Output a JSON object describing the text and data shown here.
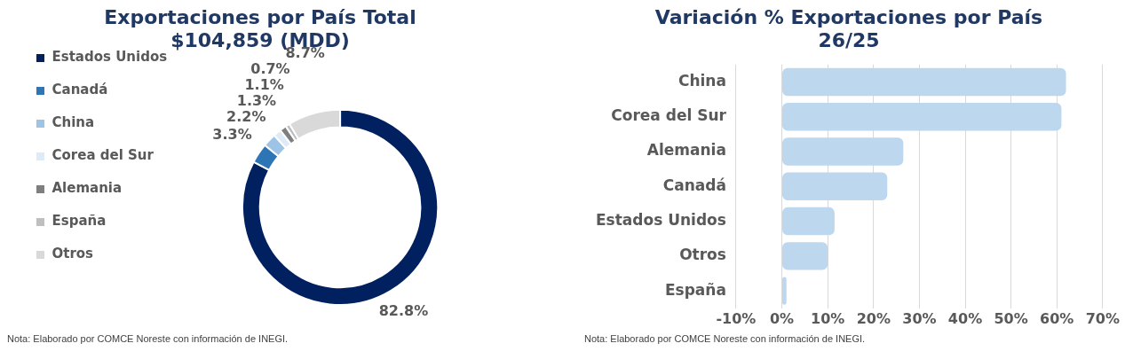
{
  "chart_data": [
    {
      "type": "donut",
      "title": "Exportaciones por País Total\n$104,859 (MDD)",
      "categories": [
        "Estados Unidos",
        "Canadá",
        "China",
        "Corea del Sur",
        "Alemania",
        "España",
        "Otros"
      ],
      "values": [
        82.8,
        3.3,
        2.2,
        1.3,
        1.1,
        0.7,
        8.7
      ],
      "value_labels": [
        "82.8%",
        "3.3%",
        "2.2%",
        "1.3%",
        "1.1%",
        "0.7%",
        "8.7%"
      ],
      "colors": [
        "#002060",
        "#2e75b6",
        "#9dc3e6",
        "#deebf7",
        "#7f7f7f",
        "#bfbfbf",
        "#d9d9d9"
      ],
      "legend": "left",
      "annotations": [
        "Nota: Elaborado por COMCE Noreste con información de INEGI."
      ]
    },
    {
      "type": "bar",
      "orientation": "horizontal",
      "title": "Variación % Exportaciones por País\n26/25",
      "categories": [
        "China",
        "Corea del Sur",
        "Alemania",
        "Canadá",
        "Estados Unidos",
        "Otros",
        "España"
      ],
      "values": [
        62,
        61,
        26.5,
        23,
        11.5,
        10,
        1
      ],
      "color": "#bdd7ee",
      "xlim": [
        -10,
        70
      ],
      "xticks": [
        {
          "value": -10,
          "label": "-10%"
        },
        {
          "value": 0,
          "label": "0%"
        },
        {
          "value": 10,
          "label": "10%"
        },
        {
          "value": 20,
          "label": "20%"
        },
        {
          "value": 30,
          "label": "30%"
        },
        {
          "value": 40,
          "label": "40%"
        },
        {
          "value": 50,
          "label": "50%"
        },
        {
          "value": 60,
          "label": "60%"
        },
        {
          "value": 70,
          "label": "70%"
        }
      ],
      "grid": "x",
      "annotations": [
        "Nota: Elaborado por COMCE Noreste con información de INEGI."
      ]
    }
  ]
}
